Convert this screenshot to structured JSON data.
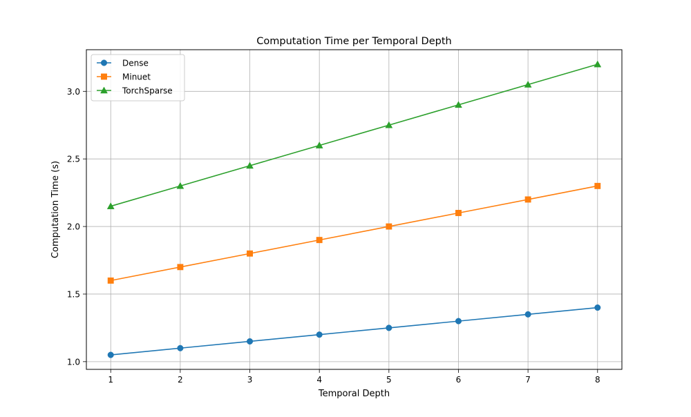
{
  "chart_data": {
    "type": "line",
    "title": "Computation Time per Temporal Depth",
    "xlabel": "Temporal Depth",
    "ylabel": "Computation Time (s)",
    "x": [
      1,
      2,
      3,
      4,
      5,
      6,
      7,
      8
    ],
    "xlim": [
      0.65,
      8.35
    ],
    "ylim": [
      0.943,
      3.308
    ],
    "xticks": [
      "1",
      "2",
      "3",
      "4",
      "5",
      "6",
      "7",
      "8"
    ],
    "yticks": [
      "1.0",
      "1.5",
      "2.0",
      "2.5",
      "3.0"
    ],
    "grid": true,
    "legend_position": "top-left",
    "series": [
      {
        "name": "Dense",
        "values": [
          1.05,
          1.1,
          1.15,
          1.2,
          1.25,
          1.3,
          1.35,
          1.4
        ],
        "color": "#1f77b4",
        "marker": "circle"
      },
      {
        "name": "Minuet",
        "values": [
          1.6,
          1.7,
          1.8,
          1.9,
          2.0,
          2.1,
          2.2,
          2.3
        ],
        "color": "#ff7f0e",
        "marker": "square"
      },
      {
        "name": "TorchSparse",
        "values": [
          2.15,
          2.3,
          2.45,
          2.6,
          2.75,
          2.9,
          3.05,
          3.2
        ],
        "color": "#2ca02c",
        "marker": "triangle"
      }
    ]
  }
}
